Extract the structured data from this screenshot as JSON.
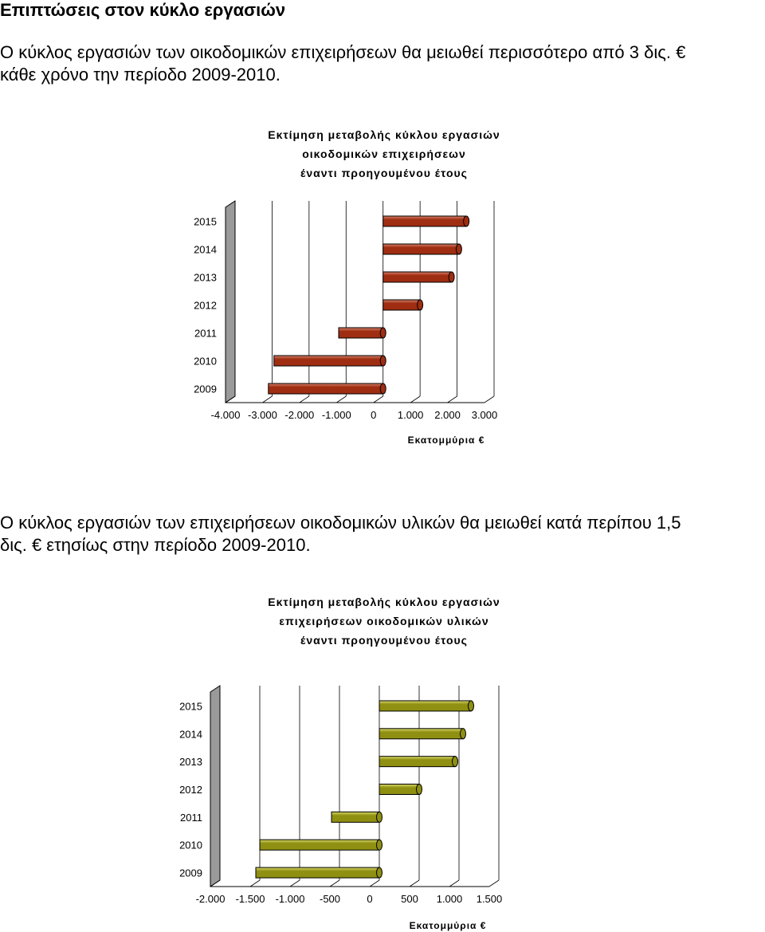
{
  "heading": "Επιπτώσεις στον κύκλο εργασιών",
  "paragraph1": {
    "line1": "Ο κύκλος εργασιών των οικοδομικών επιχειρήσεων θα μειωθεί περισσότερο από 3 δις. €",
    "line2": "κάθε χρόνο την περίοδο 2009-2010."
  },
  "paragraph2": {
    "line1": "Ο κύκλος εργασιών των επιχειρήσεων οικοδομικών υλικών θα μειωθεί κατά περίπου 1,5",
    "line2": "δις. € ετησίως στην περίοδο 2009-2010."
  },
  "chart_data": [
    {
      "type": "bar",
      "orientation": "horizontal",
      "title_lines": [
        "Εκτίμηση μεταβολής κύκλου εργασιών",
        "οικοδομικών επιχειρήσεων",
        "έναντι προηγουμένου έτους"
      ],
      "categories": [
        "2015",
        "2014",
        "2013",
        "2012",
        "2011",
        "2010",
        "2009"
      ],
      "values": [
        2250,
        2050,
        1850,
        1000,
        -1200,
        -2950,
        -3100
      ],
      "xticks": [
        "-4.000",
        "-3.000",
        "-2.000",
        "-1.000",
        "0",
        "1.000",
        "2.000",
        "3.000"
      ],
      "xlabel": "Εκατομμύρια €",
      "xlim": [
        -4000,
        3000
      ],
      "bar_color": "#9e2d12",
      "bar_highlight": "#d9826a",
      "grid": true
    },
    {
      "type": "bar",
      "orientation": "horizontal",
      "title_lines": [
        "Εκτίμηση μεταβολής κύκλου εργασιών",
        "επιχειρήσεων οικοδομικών υλικών",
        "έναντι προηγουμένου έτους"
      ],
      "categories": [
        "2015",
        "2014",
        "2013",
        "2012",
        "2011",
        "2010",
        "2009"
      ],
      "values": [
        1150,
        1050,
        950,
        500,
        -600,
        -1500,
        -1550
      ],
      "xticks": [
        "-2.000",
        "-1.500",
        "-1.000",
        "-500",
        "0",
        "500",
        "1.000",
        "1.500"
      ],
      "xlabel": "Εκατομμύρια €",
      "xlim": [
        -2000,
        1500
      ],
      "bar_color": "#8f8f12",
      "bar_highlight": "#d9d96a",
      "grid": true
    }
  ]
}
